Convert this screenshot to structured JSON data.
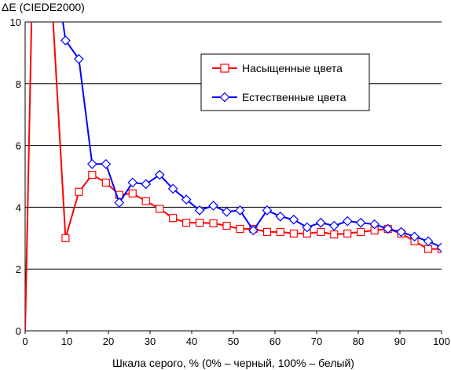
{
  "chart_data": {
    "type": "line",
    "title": "",
    "ylabel": "ΔE (CIEDE2000)",
    "xlabel": "Шкала серого, % (0% – черный, 100% – белый)",
    "xlim": [
      0,
      100
    ],
    "ylim": [
      0,
      10
    ],
    "xticks": [
      0,
      10,
      20,
      30,
      40,
      50,
      60,
      70,
      80,
      90,
      100
    ],
    "yticks": [
      0,
      2,
      4,
      6,
      8,
      10
    ],
    "grid": "horizontal",
    "legend_position": "top-right",
    "series": [
      {
        "name": "Насыщенные цвета",
        "color": "#ff0000",
        "marker": "square",
        "x": [
          0,
          1.6,
          3.2,
          6.5,
          9.7,
          12.9,
          16.1,
          19.4,
          22.6,
          25.8,
          29.0,
          32.3,
          35.5,
          38.7,
          41.9,
          45.2,
          48.4,
          51.6,
          54.8,
          58.1,
          61.3,
          64.5,
          67.7,
          71.0,
          74.2,
          77.4,
          80.6,
          83.9,
          87.1,
          90.3,
          93.5,
          96.8,
          100
        ],
        "y": [
          0,
          10.5,
          14,
          10.5,
          3.0,
          4.5,
          5.05,
          4.8,
          4.4,
          4.45,
          4.2,
          3.95,
          3.65,
          3.5,
          3.5,
          3.48,
          3.4,
          3.3,
          3.3,
          3.2,
          3.2,
          3.15,
          3.15,
          3.2,
          3.12,
          3.15,
          3.2,
          3.25,
          3.3,
          3.15,
          2.9,
          2.65,
          2.65
        ],
        "markers_from_index": 4
      },
      {
        "name": "Естественные цвета",
        "color": "#0000ff",
        "marker": "diamond",
        "x": [
          9.7,
          12.9,
          16.1,
          19.4,
          22.6,
          25.8,
          29.0,
          32.3,
          35.5,
          38.7,
          41.9,
          45.2,
          48.4,
          51.6,
          54.8,
          58.1,
          61.3,
          64.5,
          67.7,
          71.0,
          74.2,
          77.4,
          80.6,
          83.9,
          87.1,
          90.3,
          93.5,
          96.8,
          100
        ],
        "y": [
          9.4,
          8.8,
          5.4,
          5.4,
          4.15,
          4.8,
          4.75,
          5.05,
          4.6,
          4.25,
          3.9,
          4.05,
          3.85,
          3.9,
          3.25,
          3.9,
          3.7,
          3.6,
          3.35,
          3.5,
          3.4,
          3.55,
          3.5,
          3.45,
          3.3,
          3.2,
          3.05,
          2.9,
          2.7
        ],
        "lead_in": {
          "x": [
            8.0,
            9.7
          ],
          "y": [
            11,
            9.4
          ]
        },
        "markers_from_index": 0
      }
    ]
  }
}
